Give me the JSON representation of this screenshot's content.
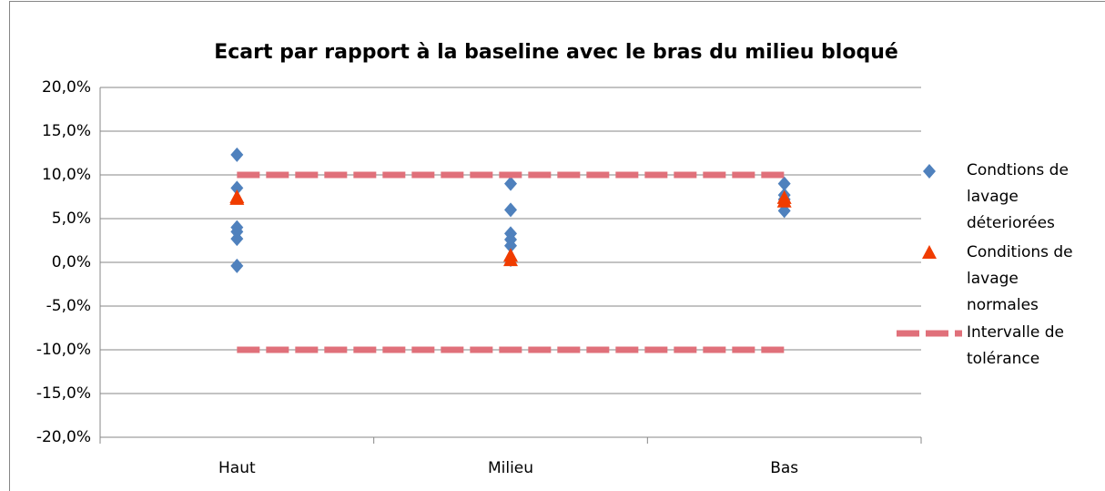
{
  "chart_data": {
    "type": "scatter",
    "title": "Ecart par rapport à la baseline avec le bras du milieu bloqué",
    "categories": [
      "Haut",
      "Milieu",
      "Bas"
    ],
    "ylim": [
      -20,
      20
    ],
    "yticks": [
      {
        "value": -20,
        "label": "-20,0%"
      },
      {
        "value": -15,
        "label": "-15,0%"
      },
      {
        "value": -10,
        "label": "-10,0%"
      },
      {
        "value": -5,
        "label": "-5,0%"
      },
      {
        "value": 0,
        "label": "0,0%"
      },
      {
        "value": 5,
        "label": "5,0%"
      },
      {
        "value": 10,
        "label": "10,0%"
      },
      {
        "value": 15,
        "label": "15,0%"
      },
      {
        "value": 20,
        "label": "20,0%"
      }
    ],
    "grid": true,
    "legend": "right",
    "series": [
      {
        "name": "Condtions de lavage déteriorées",
        "color": "#4f81bd",
        "marker": "diamond",
        "x": [
          "Haut",
          "Haut",
          "Haut",
          "Haut",
          "Haut",
          "Haut",
          "Milieu",
          "Milieu",
          "Milieu",
          "Milieu",
          "Milieu",
          "Milieu",
          "Bas",
          "Bas",
          "Bas",
          "Bas"
        ],
        "values": [
          12.3,
          8.5,
          4.0,
          3.5,
          2.7,
          -0.4,
          9.0,
          6.0,
          3.3,
          2.6,
          1.9,
          0.3,
          9.0,
          7.7,
          7.2,
          5.9
        ]
      },
      {
        "name": "Conditions de lavage normales",
        "color": "#f03c00",
        "marker": "triangle",
        "x": [
          "Haut",
          "Haut",
          "Milieu",
          "Milieu",
          "Bas",
          "Bas"
        ],
        "values": [
          7.4,
          7.2,
          0.7,
          0.2,
          7.3,
          6.9
        ]
      },
      {
        "name": "Intervalle de tolérance",
        "color": "#e0707a",
        "marker": "dashed-line",
        "x": [
          "Haut",
          "Milieu",
          "Bas",
          null,
          "Haut",
          "Milieu",
          "Bas"
        ],
        "values": [
          10,
          10,
          10,
          null,
          -10,
          -10,
          -10
        ]
      }
    ]
  }
}
